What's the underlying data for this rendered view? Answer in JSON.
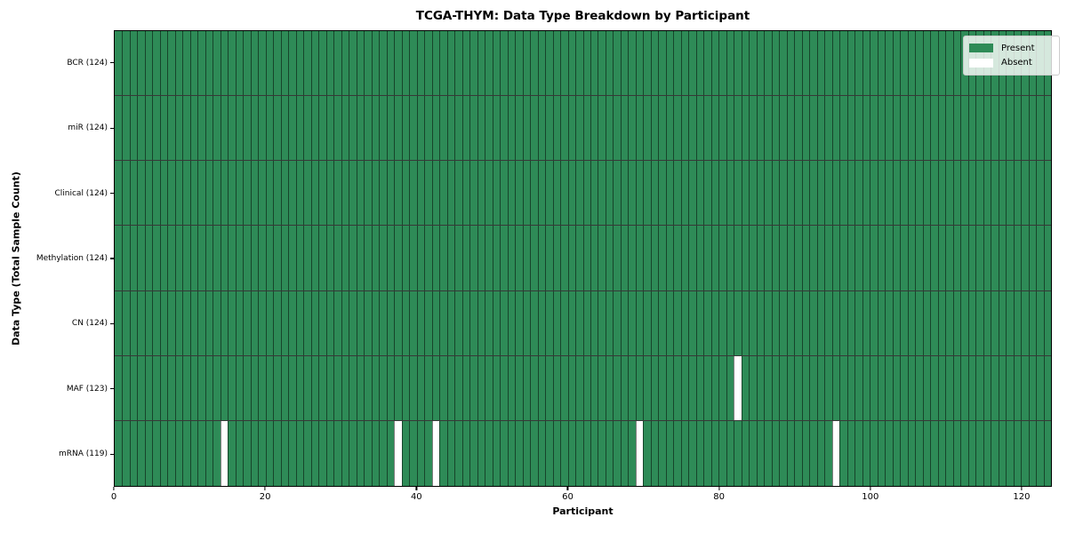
{
  "title": "TCGA-THYM: Data Type Breakdown by Participant",
  "axes": {
    "xlabel": "Participant",
    "ylabel": "Data Type (Total Sample Count)"
  },
  "legend": {
    "items": [
      {
        "label": "Present",
        "color": "#2e8b57"
      },
      {
        "label": "Absent",
        "color": "#ffffff"
      }
    ]
  },
  "colors": {
    "present": "#2e8b57",
    "absent": "#ffffff",
    "cell_border": "rgba(0,0,0,0.5)",
    "row_separator": "rgba(0,0,0,0.78)",
    "axis_spine": "#000000"
  },
  "chart_data": {
    "type": "heatmap",
    "title": "TCGA-THYM: Data Type Breakdown by Participant",
    "xlabel": "Participant",
    "ylabel": "Data Type (Total Sample Count)",
    "x_range": [
      0,
      124
    ],
    "x_ticks": [
      0,
      20,
      40,
      60,
      80,
      100,
      120
    ],
    "n_participants": 124,
    "cell_states": {
      "present": "#2e8b57",
      "absent": "#ffffff"
    },
    "legend_position": "upper right",
    "legend_entries": [
      "Present",
      "Absent"
    ],
    "grid": true,
    "rows": [
      {
        "data_type": "BCR",
        "label": "BCR (124)",
        "present_count": 124,
        "absent_participants": []
      },
      {
        "data_type": "miR",
        "label": "miR (124)",
        "present_count": 124,
        "absent_participants": []
      },
      {
        "data_type": "Clinical",
        "label": "Clinical (124)",
        "present_count": 124,
        "absent_participants": []
      },
      {
        "data_type": "Methylation",
        "label": "Methylation (124)",
        "present_count": 124,
        "absent_participants": []
      },
      {
        "data_type": "CN",
        "label": "CN (124)",
        "present_count": 124,
        "absent_participants": []
      },
      {
        "data_type": "MAF",
        "label": "MAF (123)",
        "present_count": 123,
        "absent_participants": [
          82
        ]
      },
      {
        "data_type": "mRNA",
        "label": "mRNA (119)",
        "present_count": 119,
        "absent_participants": [
          14,
          37,
          42,
          69,
          95
        ]
      }
    ]
  }
}
